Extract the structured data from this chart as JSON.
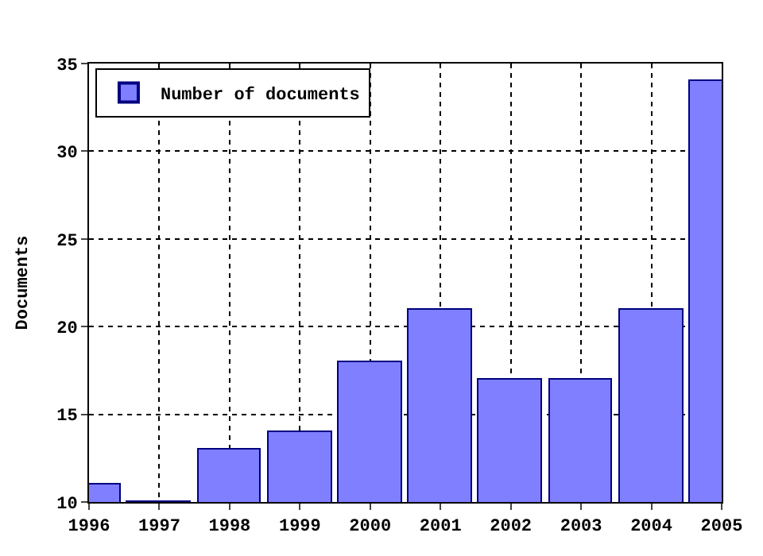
{
  "chart_data": {
    "type": "bar",
    "ylabel": "Documents",
    "x": [
      1996,
      1997,
      1998,
      1999,
      2000,
      2001,
      2002,
      2003,
      2004,
      2005
    ],
    "series": [
      {
        "name": "Number of documents",
        "color": "#7f7fff",
        "values": [
          11,
          10,
          13,
          14,
          18,
          21,
          17,
          17,
          21,
          34
        ]
      }
    ],
    "xlim": [
      1996,
      2005
    ],
    "xticks": [
      1996,
      1997,
      1998,
      1999,
      2000,
      2001,
      2002,
      2003,
      2004,
      2005
    ],
    "ylim": [
      10,
      35
    ],
    "yticks": [
      10,
      15,
      20,
      25,
      30,
      35
    ],
    "grid": true,
    "legend": "top left"
  }
}
